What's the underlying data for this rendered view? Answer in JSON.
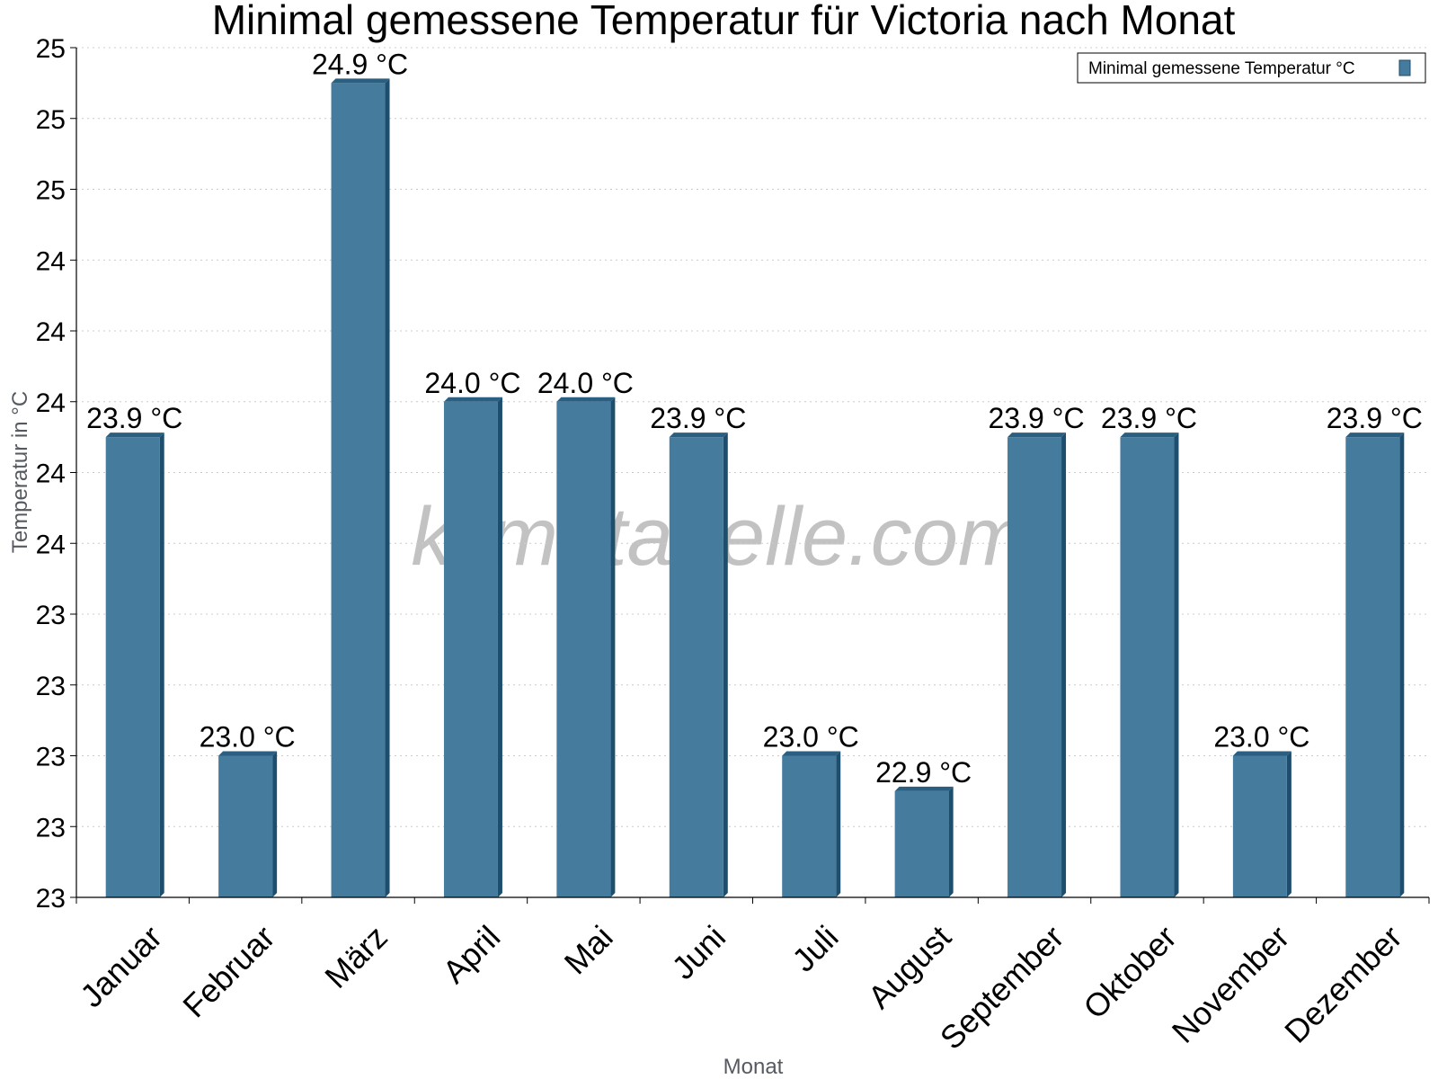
{
  "chart_data": {
    "type": "bar",
    "title": "Minimal gemessene Temperatur für Victoria nach Monat",
    "xlabel": "Monat",
    "ylabel": "Temperatur in °C",
    "categories": [
      "Januar",
      "Februar",
      "März",
      "April",
      "Mai",
      "Juni",
      "Juli",
      "August",
      "September",
      "Oktober",
      "November",
      "Dezember"
    ],
    "series": [
      {
        "name": "Minimal gemessene Temperatur °C",
        "values": [
          23.9,
          23.0,
          24.9,
          24.0,
          24.0,
          23.9,
          23.0,
          22.9,
          23.9,
          23.9,
          23.0,
          23.9
        ],
        "labels": [
          "23.9 °C",
          "23.0 °C",
          "24.9 °C",
          "24.0 °C",
          "24.0 °C",
          "23.9 °C",
          "23.0 °C",
          "22.9 °C",
          "23.9 °C",
          "23.9 °C",
          "23.0 °C",
          "23.9 °C"
        ]
      }
    ],
    "ylim": [
      22.6,
      25.0
    ],
    "yticks": {
      "values": [
        22.6,
        22.8,
        23.0,
        23.2,
        23.4,
        23.6,
        23.8,
        24.0,
        24.2,
        24.4,
        24.6,
        24.8,
        25.0
      ],
      "labels": [
        "23",
        "23",
        "23",
        "23",
        "23",
        "24",
        "24",
        "24",
        "24",
        "24",
        "25",
        "25",
        "25"
      ]
    },
    "grid": true,
    "legend_position": "top-right",
    "watermark": "klimatabelle.com",
    "colors": {
      "bar": "#457b9d",
      "bar_side": "#1d4e6e",
      "bar_top": "#2a5f82",
      "grid": "#cccccc"
    }
  }
}
